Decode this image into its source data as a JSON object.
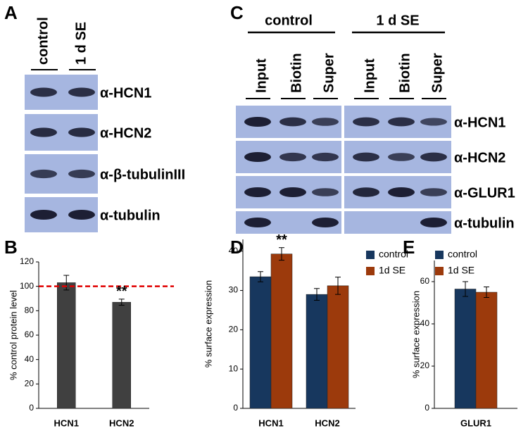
{
  "panel_labels": [
    "A",
    "B",
    "C",
    "D",
    "E"
  ],
  "blot_A": {
    "columns": [
      "control",
      "1 d SE"
    ],
    "rows": [
      "α-HCN1",
      "α-HCN2",
      "α-β-tubulinIII",
      "α-tubulin"
    ]
  },
  "blot_C": {
    "groups": [
      "control",
      "1 d SE"
    ],
    "lanes": [
      "Input",
      "Biotin",
      "Super",
      "Input",
      "Biotin",
      "Super"
    ],
    "rows": [
      "α-HCN1",
      "α-HCN2",
      "α-GLUR1",
      "α-tubulin"
    ]
  },
  "chart_data": [
    {
      "type": "bar",
      "ylabel": "% control protein level",
      "categories": [
        "HCN1",
        "HCN2"
      ],
      "values": [
        103,
        87
      ],
      "errors": [
        6,
        2.5
      ],
      "color": "#404040",
      "ylim": [
        0,
        120
      ],
      "yticks": [
        0,
        20,
        40,
        60,
        80,
        100,
        120
      ],
      "reference_line": 100,
      "reference_color": "#e00000",
      "annotation": "**"
    },
    {
      "type": "bar",
      "ylabel": "% surface expression",
      "categories": [
        "HCN1",
        "HCN2"
      ],
      "series": [
        {
          "name": "control",
          "color": "#17375e",
          "values": [
            33.5,
            29
          ],
          "errors": [
            1.3,
            1.5
          ]
        },
        {
          "name": "1d SE",
          "color": "#9c3a0c",
          "values": [
            39.3,
            31.2
          ],
          "errors": [
            1.6,
            2.2
          ]
        }
      ],
      "ylim": [
        0,
        43
      ],
      "yticks": [
        0,
        10,
        20,
        30,
        40
      ],
      "annotation": "**"
    },
    {
      "type": "bar",
      "ylabel": "% surface expression",
      "categories": [
        "GLUR1"
      ],
      "series": [
        {
          "name": "control",
          "color": "#17375e",
          "values": [
            56.5
          ],
          "errors": [
            3.5
          ]
        },
        {
          "name": "1d SE",
          "color": "#9c3a0c",
          "values": [
            55
          ],
          "errors": [
            2.5
          ]
        }
      ],
      "ylim": [
        0,
        70
      ],
      "yticks": [
        0,
        20,
        40,
        60
      ]
    }
  ]
}
